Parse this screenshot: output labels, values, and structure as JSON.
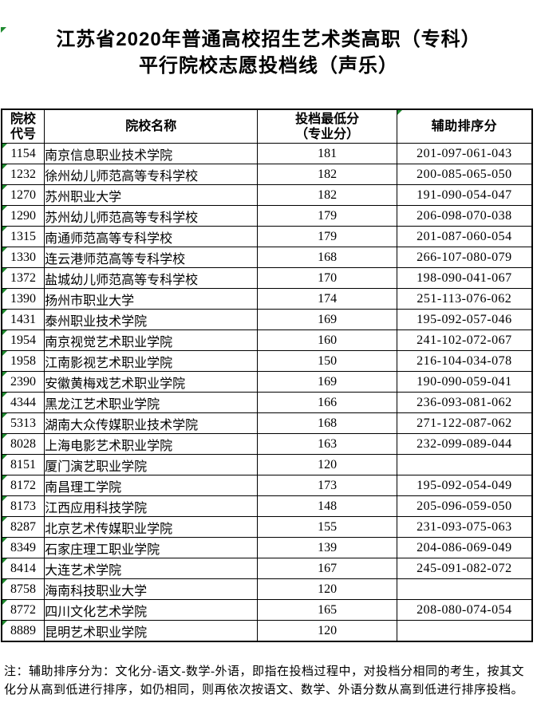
{
  "title": {
    "line1": "江苏省2020年普通高校招生艺术类高职（专科）",
    "line2": "平行院校志愿投档线（声乐）"
  },
  "table": {
    "headers": [
      {
        "label": "院校\n代号"
      },
      {
        "label": "院校名称"
      },
      {
        "label": "投档最低分\n（专业分）"
      },
      {
        "label": "辅助排序分"
      }
    ],
    "rows": [
      {
        "code": "1154",
        "name": "南京信息职业技术学院",
        "min_score": "181",
        "aux_sort": "201-097-061-043"
      },
      {
        "code": "1232",
        "name": "徐州幼儿师范高等专科学校",
        "min_score": "182",
        "aux_sort": "200-085-065-050"
      },
      {
        "code": "1270",
        "name": "苏州职业大学",
        "min_score": "182",
        "aux_sort": "191-090-054-047"
      },
      {
        "code": "1290",
        "name": "苏州幼儿师范高等专科学校",
        "min_score": "179",
        "aux_sort": "206-098-070-038"
      },
      {
        "code": "1315",
        "name": "南通师范高等专科学校",
        "min_score": "179",
        "aux_sort": "201-087-060-054"
      },
      {
        "code": "1330",
        "name": "连云港师范高等专科学校",
        "min_score": "168",
        "aux_sort": "266-107-080-079"
      },
      {
        "code": "1372",
        "name": "盐城幼儿师范高等专科学校",
        "min_score": "170",
        "aux_sort": "198-090-041-067"
      },
      {
        "code": "1390",
        "name": "扬州市职业大学",
        "min_score": "174",
        "aux_sort": "251-113-076-062"
      },
      {
        "code": "1431",
        "name": "泰州职业技术学院",
        "min_score": "169",
        "aux_sort": "195-092-057-046"
      },
      {
        "code": "1954",
        "name": "南京视觉艺术职业学院",
        "min_score": "160",
        "aux_sort": "241-102-072-067"
      },
      {
        "code": "1958",
        "name": "江南影视艺术职业学院",
        "min_score": "150",
        "aux_sort": "216-104-034-078"
      },
      {
        "code": "2390",
        "name": "安徽黄梅戏艺术职业学院",
        "min_score": "169",
        "aux_sort": "190-090-059-041"
      },
      {
        "code": "4344",
        "name": "黑龙江艺术职业学院",
        "min_score": "166",
        "aux_sort": "236-093-081-062"
      },
      {
        "code": "5313",
        "name": "湖南大众传媒职业技术学院",
        "min_score": "168",
        "aux_sort": "271-122-087-062"
      },
      {
        "code": "8028",
        "name": "上海电影艺术职业学院",
        "min_score": "163",
        "aux_sort": "232-099-089-044"
      },
      {
        "code": "8151",
        "name": "厦门演艺职业学院",
        "min_score": "120",
        "aux_sort": ""
      },
      {
        "code": "8172",
        "name": "南昌理工学院",
        "min_score": "173",
        "aux_sort": "195-092-054-049"
      },
      {
        "code": "8173",
        "name": "江西应用科技学院",
        "min_score": "148",
        "aux_sort": "205-096-059-050"
      },
      {
        "code": "8287",
        "name": "北京艺术传媒职业学院",
        "min_score": "155",
        "aux_sort": "231-093-075-063"
      },
      {
        "code": "8349",
        "name": "石家庄理工职业学院",
        "min_score": "139",
        "aux_sort": "204-086-069-049"
      },
      {
        "code": "8414",
        "name": "大连艺术学院",
        "min_score": "167",
        "aux_sort": "245-091-082-072"
      },
      {
        "code": "8758",
        "name": "海南科技职业大学",
        "min_score": "120",
        "aux_sort": ""
      },
      {
        "code": "8772",
        "name": "四川文化艺术学院",
        "min_score": "165",
        "aux_sort": "208-080-074-054"
      },
      {
        "code": "8889",
        "name": "昆明艺术职业学院",
        "min_score": "120",
        "aux_sort": ""
      }
    ]
  },
  "note": "注：辅助排序分为：文化分-语文-数学-外语，即指在投档过程中，对投档分相同的考生，按其文化分从高到低进行排序，如仍相同，则再依次按语文、数学、外语分数从高到低进行排序投档。",
  "colors": {
    "marker_green": "#1e8a2e",
    "border_black": "#000000",
    "background": "#ffffff"
  }
}
